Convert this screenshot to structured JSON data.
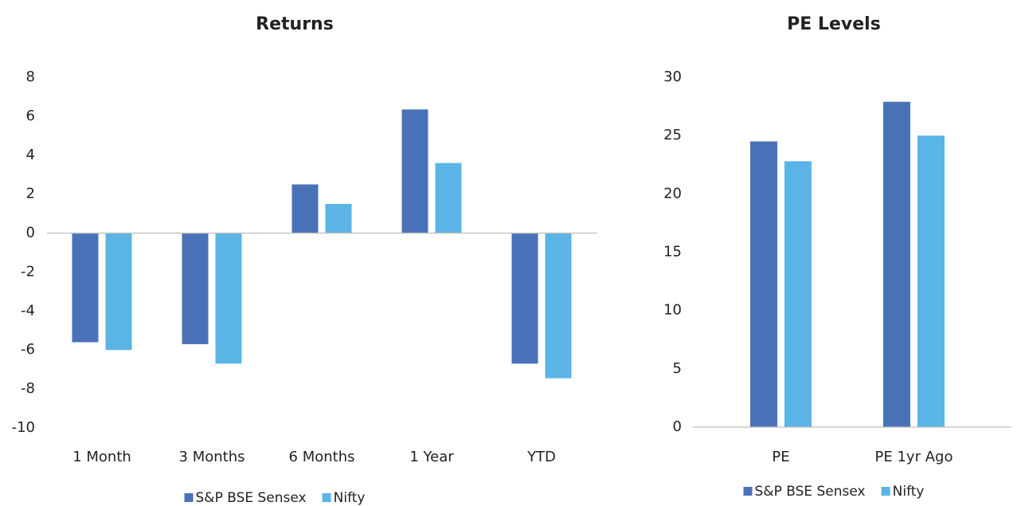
{
  "chart_data": [
    {
      "type": "bar",
      "title": "Returns",
      "categories": [
        "1 Month",
        "3 Months",
        "6 Months",
        "1 Year",
        "YTD"
      ],
      "series": [
        {
          "name": "S&P BSE Sensex",
          "color": "#4a72b8",
          "values": [
            -5.6,
            -5.7,
            2.5,
            6.35,
            -6.7
          ]
        },
        {
          "name": "Nifty",
          "color": "#5ab4e6",
          "values": [
            -6.0,
            -6.7,
            1.5,
            3.6,
            -7.45
          ]
        }
      ],
      "ylim": [
        -10,
        8
      ],
      "yticks": [
        -10,
        -8,
        -6,
        -4,
        -2,
        0,
        2,
        4,
        6,
        8
      ],
      "grid": false,
      "legend": "bottom"
    },
    {
      "type": "bar",
      "title": "PE Levels",
      "categories": [
        "PE",
        "PE 1yr Ago"
      ],
      "series": [
        {
          "name": "S&P BSE Sensex",
          "color": "#4a72b8",
          "values": [
            24.5,
            27.9
          ]
        },
        {
          "name": "Nifty",
          "color": "#5ab4e6",
          "values": [
            22.8,
            25.0
          ]
        }
      ],
      "ylim": [
        0,
        30
      ],
      "yticks": [
        0,
        5,
        10,
        15,
        20,
        25,
        30
      ],
      "grid": false,
      "legend": "bottom"
    }
  ]
}
